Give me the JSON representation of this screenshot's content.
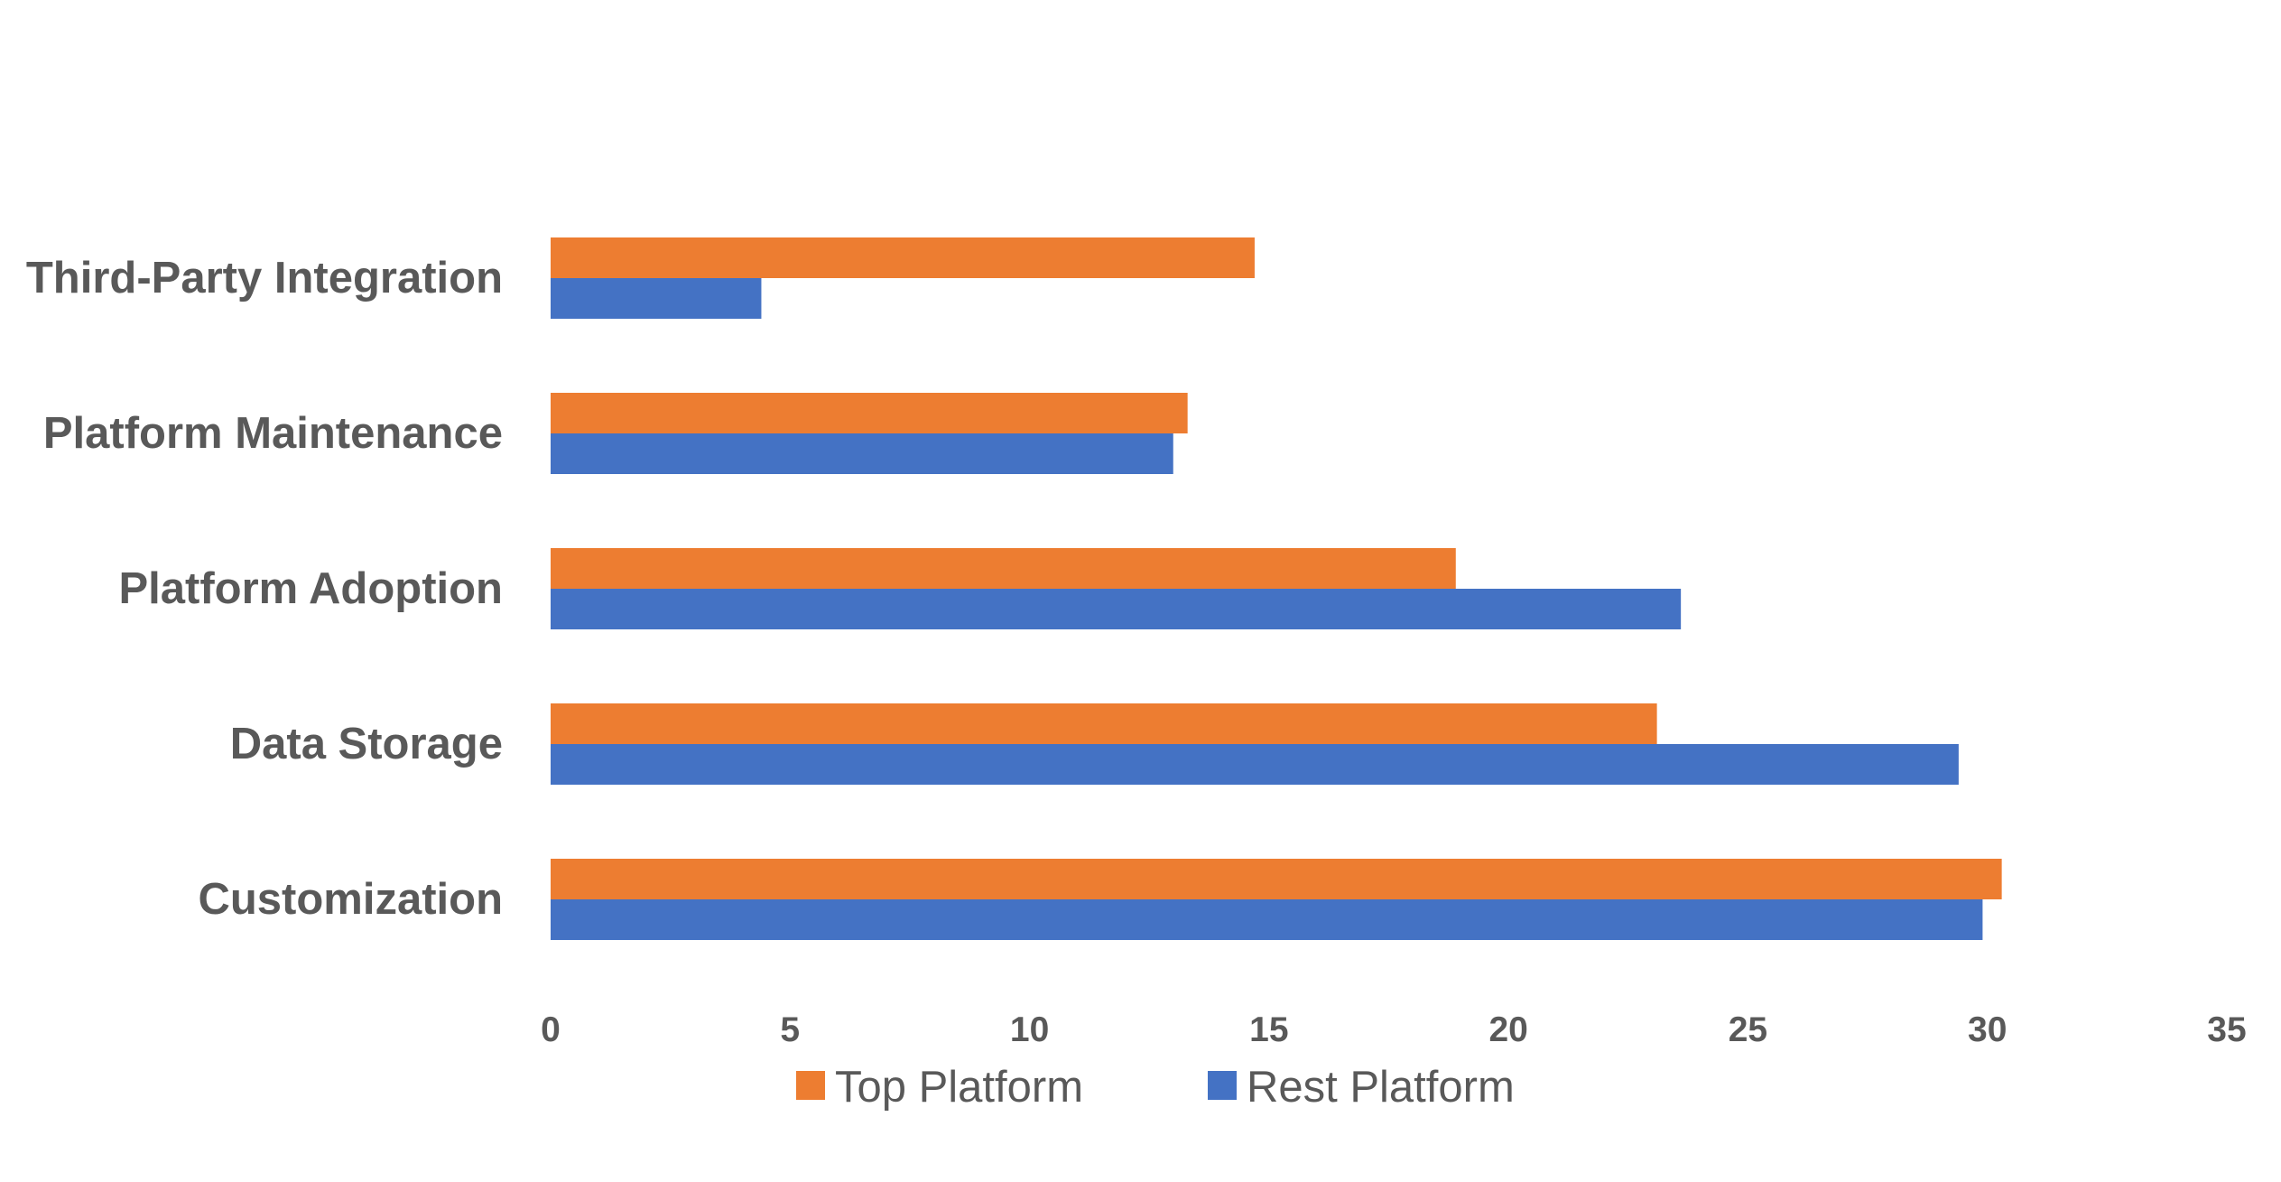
{
  "chart_data": {
    "type": "bar",
    "orientation": "horizontal",
    "categories": [
      "Customization",
      "Data Storage",
      "Platform Adoption",
      "Platform Maintenance",
      "Third-Party Integration"
    ],
    "series": [
      {
        "name": "Top Platform",
        "color": "#ED7D31",
        "values": [
          30.3,
          23.1,
          18.9,
          13.3,
          14.7
        ]
      },
      {
        "name": "Rest Platform",
        "color": "#4472C4",
        "values": [
          29.9,
          29.4,
          23.6,
          13.0,
          4.4
        ]
      }
    ],
    "xlim": [
      0,
      35
    ],
    "xticks": [
      "0",
      "5",
      "10",
      "15",
      "20",
      "25",
      "30",
      "35"
    ],
    "grid": false,
    "legend_position": "bottom",
    "title": "",
    "xlabel": "",
    "ylabel": ""
  }
}
